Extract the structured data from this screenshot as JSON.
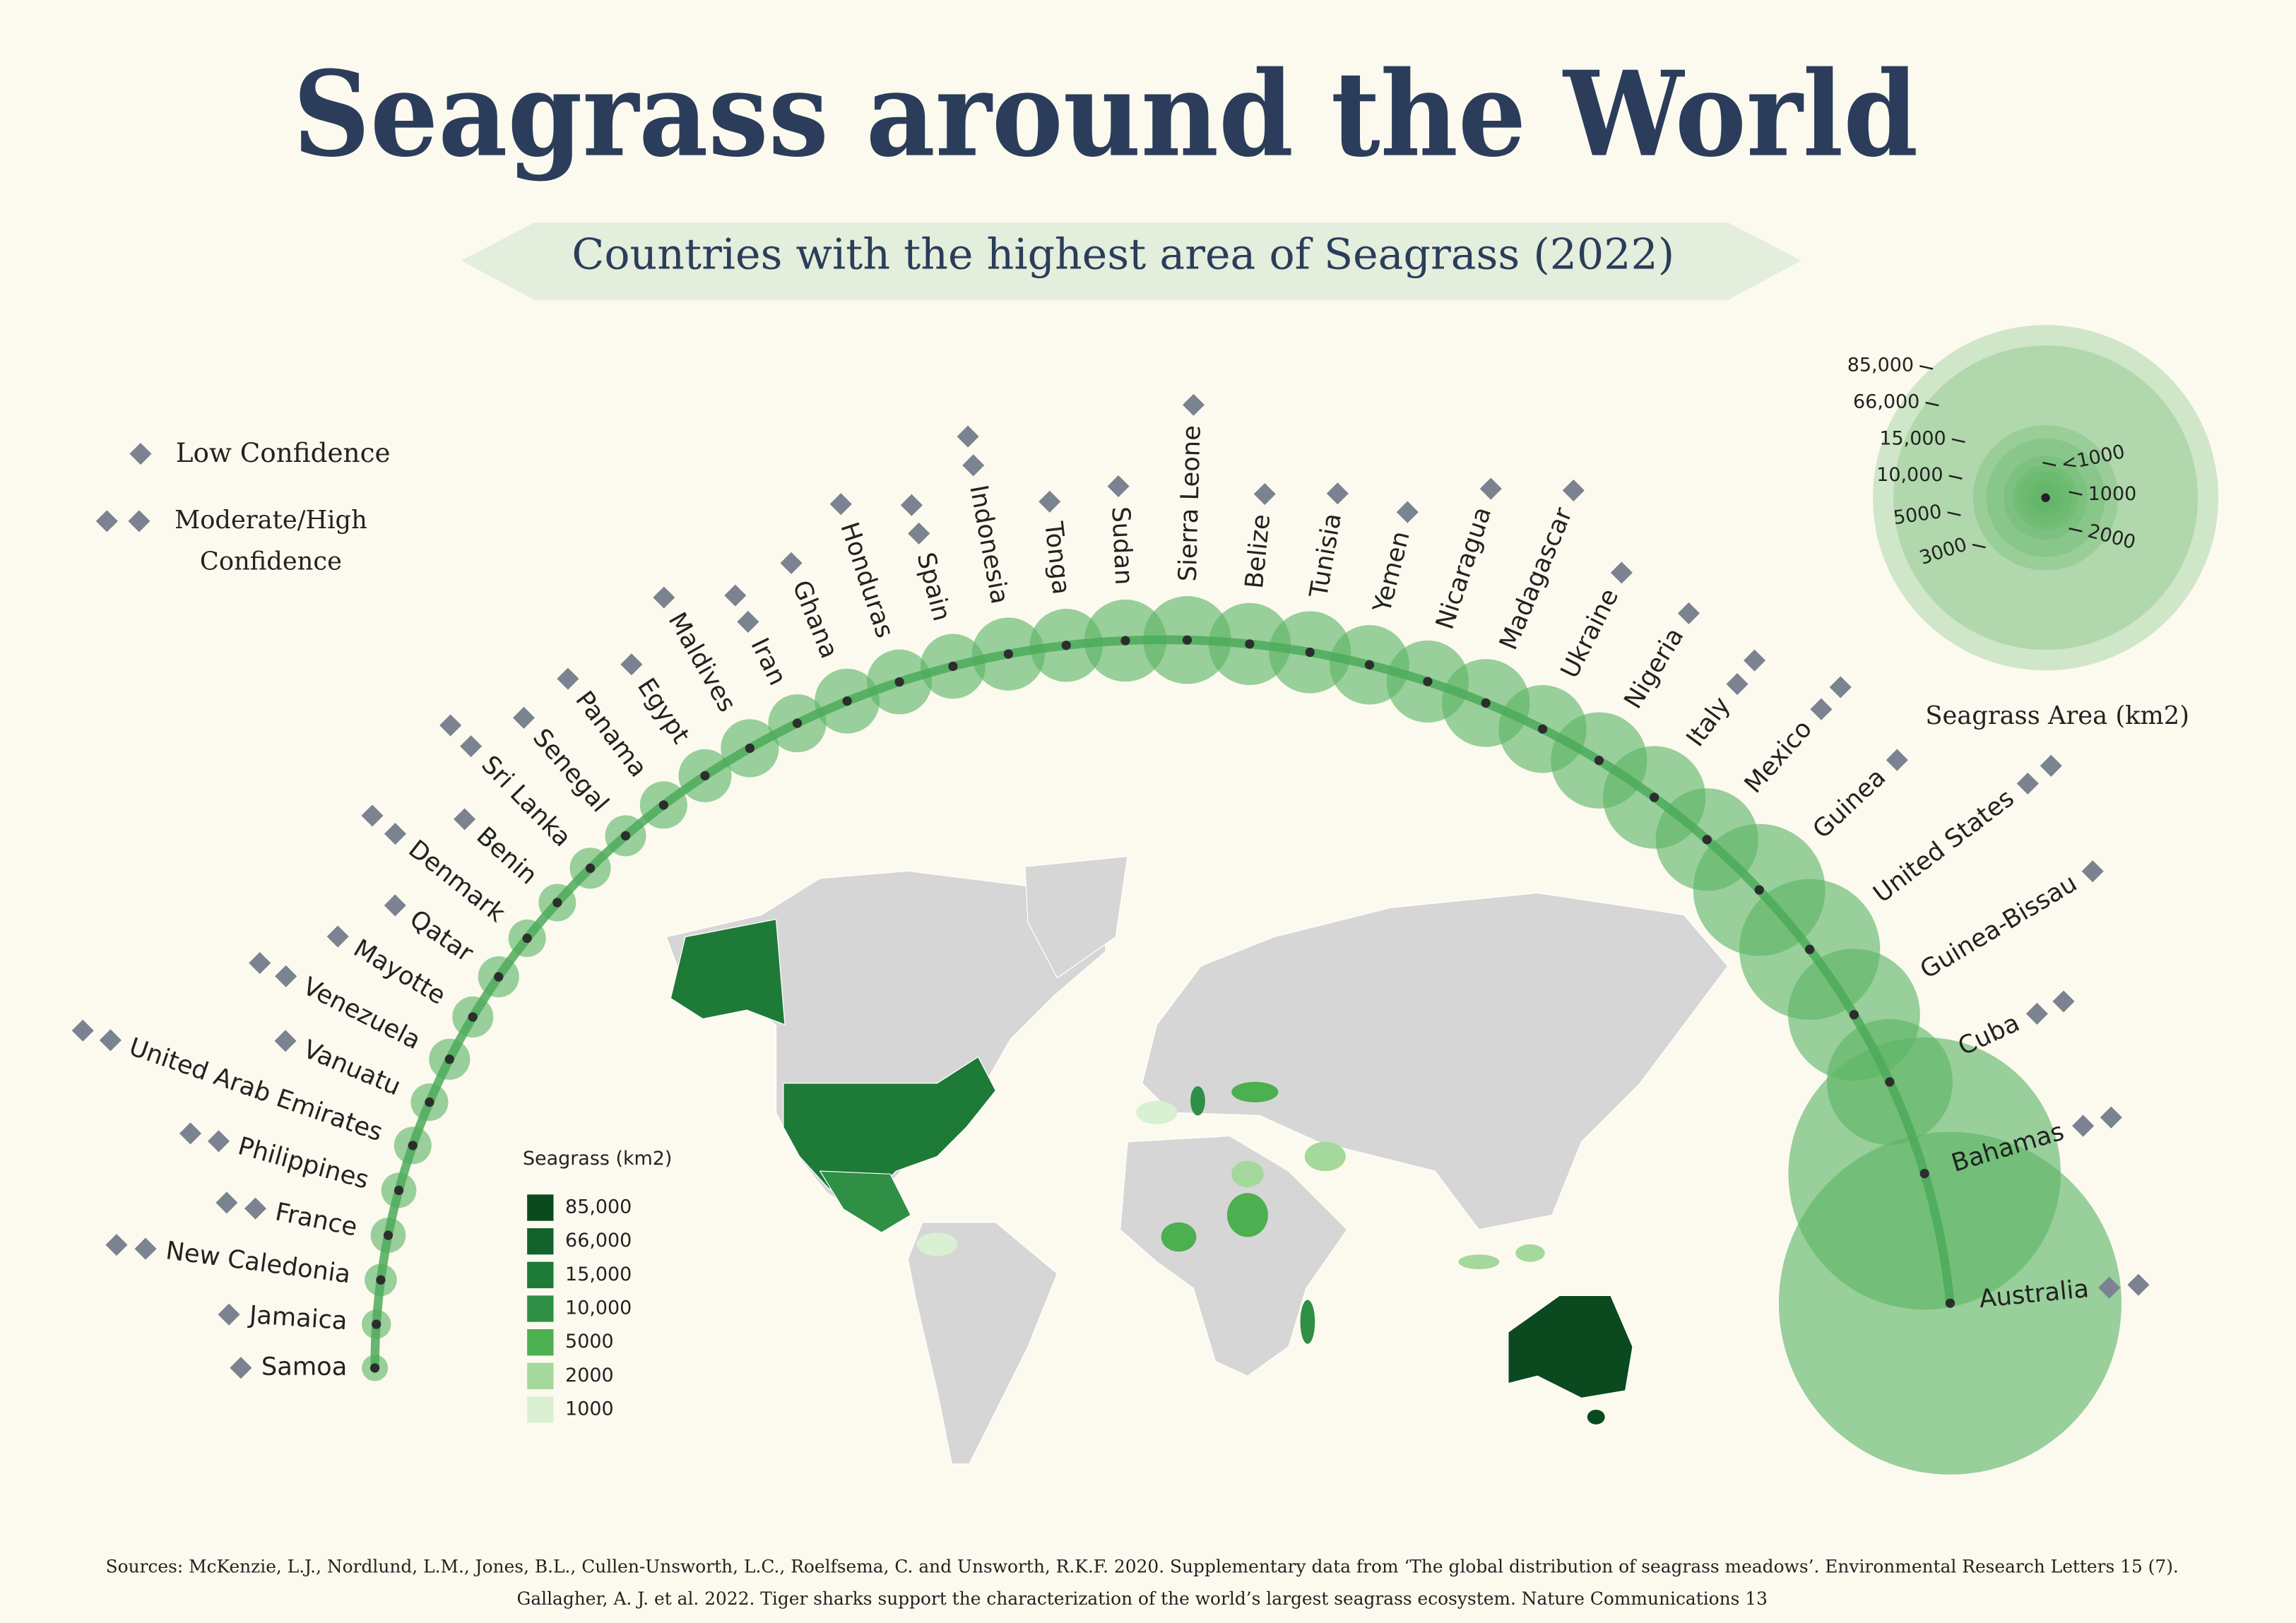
{
  "header": {
    "title": "Seagrass around the World",
    "subtitle": "Countries with the highest area of Seagrass (2022)"
  },
  "confidence_legend": [
    {
      "label": "Low Confidence",
      "diamonds": 1
    },
    {
      "label": "Moderate/High Confidence",
      "diamonds": 2
    }
  ],
  "chart_data": {
    "type": "arc-bubble",
    "color": "#5cb566",
    "categories": [
      "Samoa",
      "Jamaica",
      "New Caledonia",
      "France",
      "Philippines",
      "United Arab Emirates",
      "Vanuatu",
      "Venezuela",
      "Mayotte",
      "Qatar",
      "Denmark",
      "Benin",
      "Sri Lanka",
      "Senegal",
      "Panama",
      "Egypt",
      "Maldives",
      "Iran",
      "Ghana",
      "Honduras",
      "Spain",
      "Indonesia",
      "Tonga",
      "Sudan",
      "Sierra Leone",
      "Belize",
      "Tunisia",
      "Yemen",
      "Nicaragua",
      "Madagascar",
      "Ukraine",
      "Nigeria",
      "Italy",
      "Mexico",
      "Guinea",
      "United States",
      "Guinea-Bissau",
      "Cuba",
      "Bahamas",
      "Australia"
    ],
    "values": [
      490,
      610,
      740,
      880,
      880,
      1000,
      1000,
      1200,
      1200,
      1200,
      1000,
      1000,
      1200,
      1200,
      1600,
      2000,
      2400,
      2400,
      3000,
      3000,
      3000,
      3800,
      3800,
      4800,
      5500,
      4800,
      4800,
      4500,
      4800,
      5500,
      5500,
      6600,
      7500,
      7500,
      12400,
      14100,
      12400,
      11300,
      52800,
      83600
    ],
    "confidence": [
      1,
      1,
      2,
      2,
      2,
      2,
      1,
      2,
      1,
      1,
      2,
      1,
      2,
      1,
      1,
      1,
      1,
      2,
      1,
      1,
      2,
      2,
      1,
      1,
      1,
      1,
      1,
      1,
      1,
      1,
      1,
      1,
      2,
      2,
      1,
      2,
      1,
      2,
      2,
      2
    ]
  },
  "size_legend": {
    "title": "Seagrass Area (km2)",
    "ticks": [
      {
        "value": 85000,
        "label": "85,000"
      },
      {
        "value": 66000,
        "label": "66,000"
      },
      {
        "value": 15000,
        "label": "15,000"
      },
      {
        "value": 10000,
        "label": "10,000"
      },
      5000,
      3000,
      2000,
      1000,
      {
        "value": 500,
        "label": "<1000"
      }
    ]
  },
  "map_legend": {
    "title": "Seagrass (km2)",
    "items": [
      {
        "label": "85,000",
        "color": "#0a4a1e"
      },
      {
        "label": "66,000",
        "color": "#13622b"
      },
      {
        "label": "15,000",
        "color": "#1d7a37"
      },
      {
        "label": "10,000",
        "color": "#2e8f45"
      },
      {
        "label": "5000",
        "color": "#4caf50"
      },
      {
        "label": "2000",
        "color": "#a5d89b"
      },
      {
        "label": "1000",
        "color": "#d9f0d3"
      }
    ]
  },
  "sources": [
    "Sources: McKenzie, L.J., Nordlund, L.M., Jones, B.L., Cullen-Unsworth, L.C., Roelfsema, C. and Unsworth, R.K.F. 2020. Supplementary data from ‘The global distribution of seagrass meadows’. Environmental Research Letters 15 (7).",
    "Gallagher, A. J. et al. 2022. Tiger sharks support the characterization of the world’s largest seagrass ecosystem. Nature Communications 13"
  ]
}
